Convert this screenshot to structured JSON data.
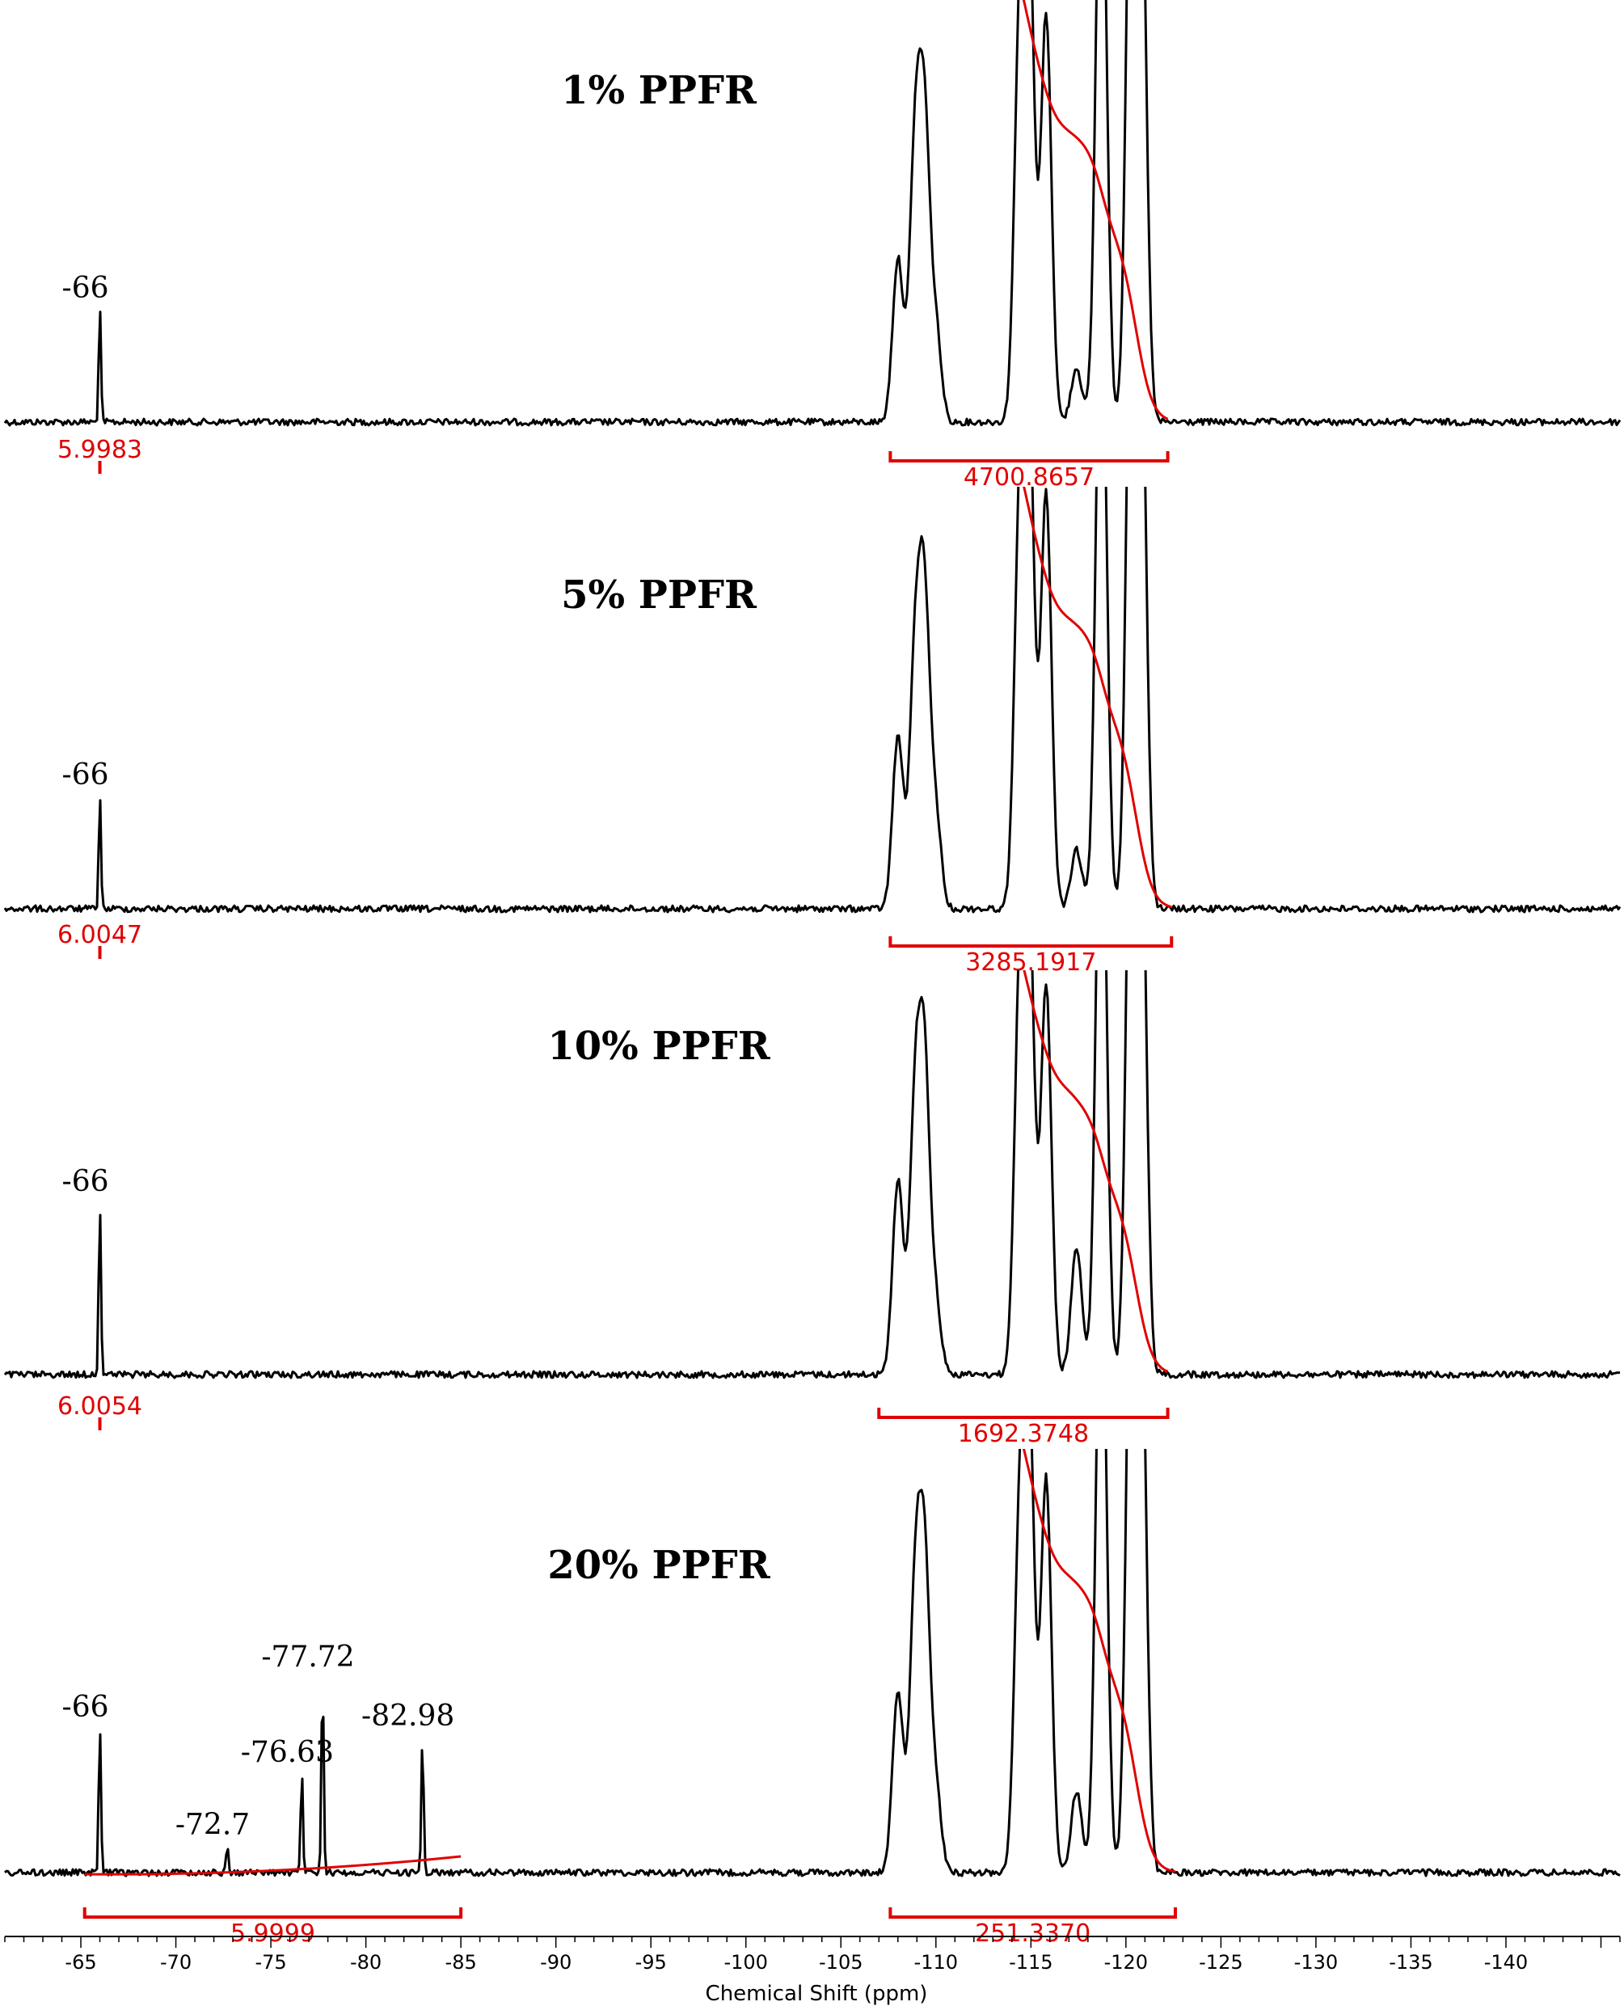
{
  "chart_data": {
    "type": "line",
    "xlabel": "Chemical Shift (ppm)",
    "xlim": [
      -61,
      -146
    ],
    "x_reversed": true,
    "x_ticks": [
      -65,
      -70,
      -75,
      -80,
      -85,
      -90,
      -95,
      -100,
      -105,
      -110,
      -115,
      -120,
      -125,
      -130,
      -135,
      -140
    ],
    "x_tick_labels": [
      "-65",
      "-70",
      "-75",
      "-80",
      "-85",
      "-90",
      "-95",
      "-100",
      "-105",
      "-110",
      "-115",
      "-120",
      "-125",
      "-130",
      "-135",
      "-140"
    ],
    "series": [
      {
        "name": "1% PPFR",
        "peak_labels": [
          {
            "x": -66,
            "label": "-66"
          }
        ],
        "integrals": [
          {
            "from": -65.8,
            "to": -66.2,
            "label": "5.9983"
          },
          {
            "from": -107.6,
            "to": -122.2,
            "label": "4700.8657"
          }
        ],
        "peaks": [
          {
            "x": -66,
            "height": 0.25
          },
          {
            "x": -108.0,
            "height": 0.36
          },
          {
            "x": -108.9,
            "height": 0.59
          },
          {
            "x": -109.4,
            "height": 0.63
          },
          {
            "x": -110.0,
            "height": 0.2
          },
          {
            "x": -114.4,
            "height": 0.82
          },
          {
            "x": -114.9,
            "height": 1.04
          },
          {
            "x": -115.8,
            "height": 0.9
          },
          {
            "x": -117.4,
            "height": 0.12
          },
          {
            "x": -118.7,
            "height": 1.4
          },
          {
            "x": -120.3,
            "height": 1.4
          },
          {
            "x": -120.8,
            "height": 1.2
          }
        ]
      },
      {
        "name": "5% PPFR",
        "peak_labels": [
          {
            "x": -66,
            "label": "-66"
          }
        ],
        "integrals": [
          {
            "from": -65.8,
            "to": -66.2,
            "label": "6.0047"
          },
          {
            "from": -107.6,
            "to": -122.4,
            "label": "3285.1917"
          }
        ],
        "peaks": [
          {
            "x": -66,
            "height": 0.25
          },
          {
            "x": -108.0,
            "height": 0.38
          },
          {
            "x": -108.9,
            "height": 0.54
          },
          {
            "x": -109.4,
            "height": 0.65
          },
          {
            "x": -110.0,
            "height": 0.2
          },
          {
            "x": -114.4,
            "height": 0.82
          },
          {
            "x": -114.9,
            "height": 1.05
          },
          {
            "x": -115.8,
            "height": 0.92
          },
          {
            "x": -117.4,
            "height": 0.13
          },
          {
            "x": -118.7,
            "height": 1.4
          },
          {
            "x": -120.3,
            "height": 1.4
          },
          {
            "x": -120.8,
            "height": 1.2
          }
        ]
      },
      {
        "name": "10% PPFR",
        "peak_labels": [
          {
            "x": -66,
            "label": "-66"
          }
        ],
        "integrals": [
          {
            "from": -65.8,
            "to": -66.2,
            "label": "6.0054"
          },
          {
            "from": -107.0,
            "to": -122.2,
            "label": "1692.3748"
          }
        ],
        "peaks": [
          {
            "x": -66,
            "height": 0.38
          },
          {
            "x": -108.0,
            "height": 0.43
          },
          {
            "x": -108.9,
            "height": 0.58
          },
          {
            "x": -109.4,
            "height": 0.65
          },
          {
            "x": -110.0,
            "height": 0.15
          },
          {
            "x": -114.4,
            "height": 0.8
          },
          {
            "x": -114.9,
            "height": 1.0
          },
          {
            "x": -115.8,
            "height": 0.86
          },
          {
            "x": -117.4,
            "height": 0.28
          },
          {
            "x": -118.7,
            "height": 1.4
          },
          {
            "x": -120.3,
            "height": 1.4
          },
          {
            "x": -120.8,
            "height": 1.2
          }
        ]
      },
      {
        "name": "20% PPFR",
        "peak_labels": [
          {
            "x": -66,
            "label": "-66"
          },
          {
            "x": -72.7,
            "label": "-72.7"
          },
          {
            "x": -76.63,
            "label": "-76.63"
          },
          {
            "x": -77.72,
            "label": "-77.72"
          },
          {
            "x": -82.98,
            "label": "-82.98"
          }
        ],
        "integrals": [
          {
            "from": -65.2,
            "to": -85.0,
            "label": "5.9999"
          },
          {
            "from": -107.6,
            "to": -122.6,
            "label": "251.3370"
          }
        ],
        "peaks": [
          {
            "x": -66,
            "height": 0.32
          },
          {
            "x": -72.7,
            "height": 0.06
          },
          {
            "x": -76.63,
            "height": 0.22
          },
          {
            "x": -77.72,
            "height": 0.43
          },
          {
            "x": -82.98,
            "height": 0.3
          },
          {
            "x": -108.0,
            "height": 0.4
          },
          {
            "x": -108.9,
            "height": 0.6
          },
          {
            "x": -109.4,
            "height": 0.66
          },
          {
            "x": -110.0,
            "height": 0.18
          },
          {
            "x": -114.4,
            "height": 0.72
          },
          {
            "x": -114.9,
            "height": 1.0
          },
          {
            "x": -115.8,
            "height": 0.87
          },
          {
            "x": -117.4,
            "height": 0.18
          },
          {
            "x": -118.7,
            "height": 1.4
          },
          {
            "x": -120.3,
            "height": 1.4
          },
          {
            "x": -120.8,
            "height": 1.2
          }
        ]
      }
    ]
  },
  "colors": {
    "spectrum": "#000000",
    "integral": "#e00000"
  }
}
